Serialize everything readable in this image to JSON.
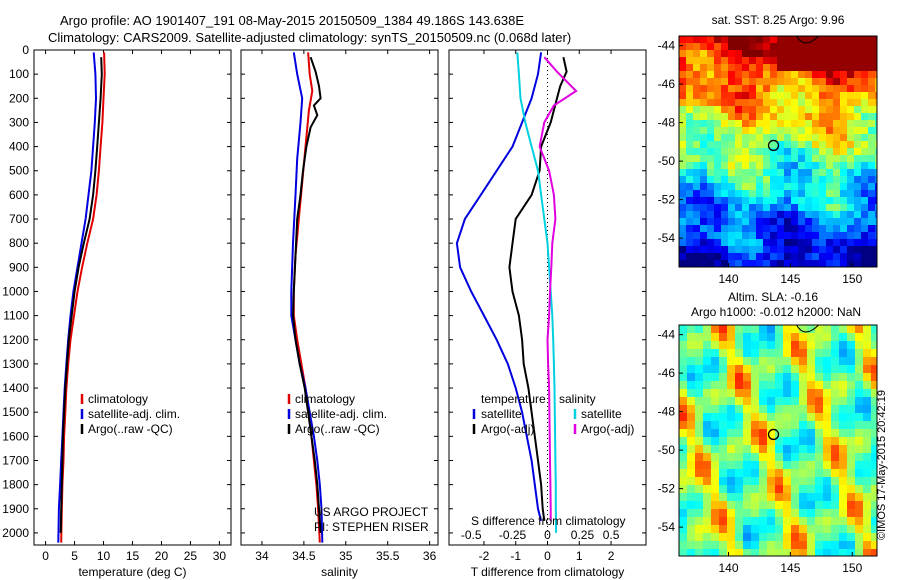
{
  "header": {
    "line1": "Argo profile: AO 1901407_191 08-May-2015 20150509_1384 49.186S 143.638E",
    "line2": "Climatology: CARS2009. Satellite-adjusted climatology: synTS_20150509.nc (0.068d later)"
  },
  "credit": "©IMOS 17-May-2015 20:42:19",
  "chart_data": [
    {
      "type": "line",
      "panel": "temperature",
      "xlabel": "temperature (deg C)",
      "ylabel": "",
      "xlim": [
        -2,
        32
      ],
      "ylim": [
        2050,
        0
      ],
      "y_reversed": true,
      "xticks": [
        0,
        5,
        10,
        15,
        20,
        25,
        30
      ],
      "yticks": [
        0,
        100,
        200,
        300,
        400,
        500,
        600,
        700,
        800,
        900,
        1000,
        1100,
        1200,
        1300,
        1400,
        1500,
        1600,
        1700,
        1800,
        1900,
        2000
      ],
      "legend": [
        "climatology",
        "satellite-adj. clim.",
        "Argo(..raw -QC)"
      ],
      "legend_position": "lower-middle",
      "series": [
        {
          "name": "climatology",
          "color": "#e00000",
          "points": [
            [
              10.1,
              10
            ],
            [
              10.2,
              100
            ],
            [
              10.0,
              200
            ],
            [
              9.8,
              300
            ],
            [
              9.5,
              400
            ],
            [
              9.2,
              500
            ],
            [
              8.8,
              600
            ],
            [
              8.2,
              700
            ],
            [
              7.2,
              800
            ],
            [
              6.3,
              900
            ],
            [
              5.5,
              1000
            ],
            [
              4.9,
              1100
            ],
            [
              4.3,
              1200
            ],
            [
              3.9,
              1300
            ],
            [
              3.6,
              1400
            ],
            [
              3.4,
              1500
            ],
            [
              3.2,
              1600
            ],
            [
              3.1,
              1700
            ],
            [
              2.9,
              1800
            ],
            [
              2.8,
              1900
            ],
            [
              2.7,
              2040
            ]
          ]
        },
        {
          "name": "satellite-adj. clim.",
          "color": "#0000e0",
          "points": [
            [
              8.3,
              10
            ],
            [
              8.6,
              100
            ],
            [
              8.7,
              200
            ],
            [
              8.5,
              300
            ],
            [
              8.2,
              400
            ],
            [
              7.9,
              500
            ],
            [
              7.4,
              600
            ],
            [
              6.9,
              700
            ],
            [
              6.2,
              800
            ],
            [
              5.5,
              900
            ],
            [
              4.8,
              1000
            ],
            [
              4.3,
              1100
            ],
            [
              3.9,
              1200
            ],
            [
              3.6,
              1300
            ],
            [
              3.3,
              1400
            ],
            [
              3.1,
              1500
            ],
            [
              2.9,
              1600
            ],
            [
              2.7,
              1700
            ],
            [
              2.5,
              1800
            ],
            [
              2.3,
              1900
            ],
            [
              2.2,
              2040
            ]
          ]
        },
        {
          "name": "Argo(..raw -QC)",
          "color": "#000000",
          "points": [
            [
              9.6,
              30
            ],
            [
              9.7,
              100
            ],
            [
              9.5,
              200
            ],
            [
              9.2,
              300
            ],
            [
              8.9,
              400
            ],
            [
              8.6,
              500
            ],
            [
              8.2,
              600
            ],
            [
              7.6,
              700
            ],
            [
              6.6,
              800
            ],
            [
              5.7,
              900
            ],
            [
              5.0,
              1000
            ],
            [
              4.5,
              1100
            ],
            [
              4.0,
              1200
            ],
            [
              3.7,
              1300
            ],
            [
              3.4,
              1400
            ],
            [
              3.2,
              1500
            ],
            [
              3.0,
              1600
            ],
            [
              2.9,
              1700
            ],
            [
              2.8,
              1800
            ],
            [
              2.7,
              1900
            ],
            [
              2.6,
              2000
            ]
          ]
        }
      ]
    },
    {
      "type": "line",
      "panel": "salinity",
      "xlabel": "salinity",
      "ylabel": "",
      "xlim": [
        33.75,
        36.1
      ],
      "ylim": [
        2050,
        0
      ],
      "y_reversed": true,
      "xticks": [
        34,
        34.5,
        35,
        35.5,
        36
      ],
      "legend": [
        "climatology",
        "satellite-adj. clim.",
        "Argo(..raw -QC)"
      ],
      "legend_position": "lower-middle",
      "annotations": [
        "US ARGO PROJECT",
        "PI: STEPHEN RISER"
      ],
      "series": [
        {
          "name": "climatology",
          "color": "#e00000",
          "points": [
            [
              34.55,
              10
            ],
            [
              34.57,
              100
            ],
            [
              34.6,
              170
            ],
            [
              34.56,
              250
            ],
            [
              34.52,
              400
            ],
            [
              34.48,
              550
            ],
            [
              34.44,
              700
            ],
            [
              34.4,
              850
            ],
            [
              34.38,
              1000
            ],
            [
              34.38,
              1100
            ],
            [
              34.42,
              1200
            ],
            [
              34.47,
              1300
            ],
            [
              34.52,
              1400
            ],
            [
              34.56,
              1500
            ],
            [
              34.59,
              1600
            ],
            [
              34.62,
              1700
            ],
            [
              34.65,
              1800
            ],
            [
              34.67,
              1900
            ],
            [
              34.69,
              2040
            ]
          ]
        },
        {
          "name": "satellite-adj. clim.",
          "color": "#0000e0",
          "points": [
            [
              34.38,
              10
            ],
            [
              34.42,
              100
            ],
            [
              34.48,
              200
            ],
            [
              34.46,
              300
            ],
            [
              34.42,
              450
            ],
            [
              34.4,
              600
            ],
            [
              34.37,
              800
            ],
            [
              34.35,
              1000
            ],
            [
              34.35,
              1100
            ],
            [
              34.4,
              1200
            ],
            [
              34.45,
              1300
            ],
            [
              34.52,
              1400
            ],
            [
              34.57,
              1500
            ],
            [
              34.62,
              1600
            ],
            [
              34.66,
              1700
            ],
            [
              34.69,
              1800
            ],
            [
              34.71,
              1900
            ],
            [
              34.72,
              2040
            ]
          ]
        },
        {
          "name": "Argo(..raw -QC)",
          "color": "#000000",
          "points": [
            [
              34.58,
              30
            ],
            [
              34.64,
              90
            ],
            [
              34.68,
              150
            ],
            [
              34.7,
              200
            ],
            [
              34.62,
              230
            ],
            [
              34.66,
              270
            ],
            [
              34.58,
              320
            ],
            [
              34.53,
              400
            ],
            [
              34.49,
              500
            ],
            [
              34.46,
              600
            ],
            [
              34.42,
              700
            ],
            [
              34.4,
              850
            ],
            [
              34.38,
              1000
            ],
            [
              34.37,
              1100
            ],
            [
              34.4,
              1200
            ],
            [
              34.45,
              1300
            ],
            [
              34.51,
              1400
            ],
            [
              34.55,
              1500
            ],
            [
              34.59,
              1600
            ],
            [
              34.63,
              1700
            ],
            [
              34.66,
              1800
            ],
            [
              34.68,
              1900
            ],
            [
              34.7,
              2000
            ]
          ]
        }
      ]
    },
    {
      "type": "line",
      "panel": "difference",
      "xlabel": "T difference from climatology",
      "top_axis_label": "S difference from climatology",
      "xlim": [
        -3.1,
        3.1
      ],
      "ylim": [
        2050,
        0
      ],
      "y_reversed": true,
      "xticks": [
        -2,
        -1,
        0,
        1,
        2
      ],
      "top_xticks": [
        "-0.5",
        "-0.25",
        "0",
        "0.25",
        "0.5"
      ],
      "zero_line": "dotted",
      "legend": {
        "temperature_heading": "temperature",
        "salinity_heading": "salinity",
        "temperature_items": [
          "satellite",
          "Argo(-adj)"
        ],
        "salinity_items": [
          "satellite",
          "Argo(-adj)"
        ]
      },
      "legend_position": "lower-middle",
      "series": [
        {
          "name": "temperature satellite",
          "color": "#0000e0",
          "points": [
            [
              -0.2,
              10
            ],
            [
              -0.3,
              100
            ],
            [
              -0.5,
              200
            ],
            [
              -0.8,
              300
            ],
            [
              -1.1,
              400
            ],
            [
              -1.6,
              500
            ],
            [
              -2.1,
              600
            ],
            [
              -2.6,
              700
            ],
            [
              -2.85,
              800
            ],
            [
              -2.75,
              900
            ],
            [
              -2.4,
              1000
            ],
            [
              -2.0,
              1100
            ],
            [
              -1.6,
              1200
            ],
            [
              -1.25,
              1300
            ],
            [
              -1.0,
              1400
            ],
            [
              -0.8,
              1500
            ],
            [
              -0.65,
              1600
            ],
            [
              -0.5,
              1700
            ],
            [
              -0.4,
              1800
            ],
            [
              -0.3,
              1900
            ],
            [
              -0.2,
              1950
            ]
          ]
        },
        {
          "name": "temperature Argo(-adj)",
          "color": "#000000",
          "points": [
            [
              0.5,
              30
            ],
            [
              0.6,
              90
            ],
            [
              0.4,
              150
            ],
            [
              0.3,
              200
            ],
            [
              0.1,
              300
            ],
            [
              -0.2,
              400
            ],
            [
              -0.25,
              500
            ],
            [
              -0.5,
              600
            ],
            [
              -1.0,
              700
            ],
            [
              -1.1,
              800
            ],
            [
              -1.2,
              900
            ],
            [
              -1.1,
              1000
            ],
            [
              -0.9,
              1100
            ],
            [
              -0.8,
              1200
            ],
            [
              -0.75,
              1300
            ],
            [
              -0.6,
              1400
            ],
            [
              -0.5,
              1500
            ],
            [
              -0.4,
              1600
            ],
            [
              -0.3,
              1700
            ],
            [
              -0.2,
              1800
            ],
            [
              -0.15,
              1900
            ],
            [
              -0.1,
              1950
            ]
          ]
        },
        {
          "name": "salinity satellite",
          "color": "#00d0e0",
          "points": [
            [
              -0.95,
              10
            ],
            [
              -0.9,
              100
            ],
            [
              -0.85,
              200
            ],
            [
              -0.7,
              300
            ],
            [
              -0.5,
              400
            ],
            [
              -0.3,
              500
            ],
            [
              -0.2,
              600
            ],
            [
              -0.1,
              700
            ],
            [
              0.0,
              800
            ],
            [
              0.05,
              900
            ],
            [
              0.1,
              1000
            ],
            [
              0.15,
              1100
            ],
            [
              0.18,
              1200
            ],
            [
              0.2,
              1300
            ],
            [
              0.22,
              1400
            ],
            [
              0.23,
              1500
            ],
            [
              0.24,
              1600
            ],
            [
              0.25,
              1700
            ],
            [
              0.26,
              1800
            ],
            [
              0.26,
              1900
            ],
            [
              0.27,
              2000
            ]
          ]
        },
        {
          "name": "salinity Argo(-adj)",
          "color": "#e000e0",
          "points": [
            [
              -0.1,
              30
            ],
            [
              0.3,
              90
            ],
            [
              0.9,
              170
            ],
            [
              0.2,
              230
            ],
            [
              -0.1,
              300
            ],
            [
              -0.25,
              400
            ],
            [
              0.05,
              500
            ],
            [
              0.2,
              600
            ],
            [
              0.25,
              700
            ],
            [
              0.15,
              800
            ],
            [
              0.12,
              900
            ],
            [
              0.08,
              1000
            ],
            [
              0.05,
              1100
            ],
            [
              0.0,
              1200
            ],
            [
              0.02,
              1300
            ],
            [
              0.05,
              1400
            ],
            [
              0.06,
              1500
            ],
            [
              0.07,
              1600
            ],
            [
              0.08,
              1700
            ],
            [
              0.09,
              1800
            ],
            [
              0.1,
              1900
            ],
            [
              0.1,
              1950
            ]
          ]
        }
      ]
    },
    {
      "type": "heatmap",
      "panel": "sst-map",
      "title": "sat. SST: 8.25  Argo: 9.96",
      "xlim": [
        136,
        152
      ],
      "ylim": [
        -55.5,
        -43.5
      ],
      "xticks": [
        140,
        145,
        150
      ],
      "yticks": [
        -44,
        -46,
        -48,
        -50,
        -52,
        -54
      ],
      "colormap": "jet",
      "float_position": [
        143.638,
        -49.186
      ],
      "pattern": "warm red/orange in north (-44 to -47), green band near -48 to -50, cyan near -50 to -51, dark blue south of -52"
    },
    {
      "type": "heatmap",
      "panel": "sla-map",
      "title_line1": "Altim. SLA: -0.16",
      "title_line2": "Argo h1000: -0.012  h2000: NaN",
      "xlim": [
        136,
        152
      ],
      "ylim": [
        -55.5,
        -43.5
      ],
      "xticks": [
        140,
        145,
        150
      ],
      "yticks": [
        -44,
        -46,
        -48,
        -50,
        -52,
        -54
      ],
      "colormap": "jet",
      "float_position": [
        143.638,
        -49.186
      ],
      "pattern": "mostly green with scattered yellow-orange and light-blue eddies"
    }
  ]
}
